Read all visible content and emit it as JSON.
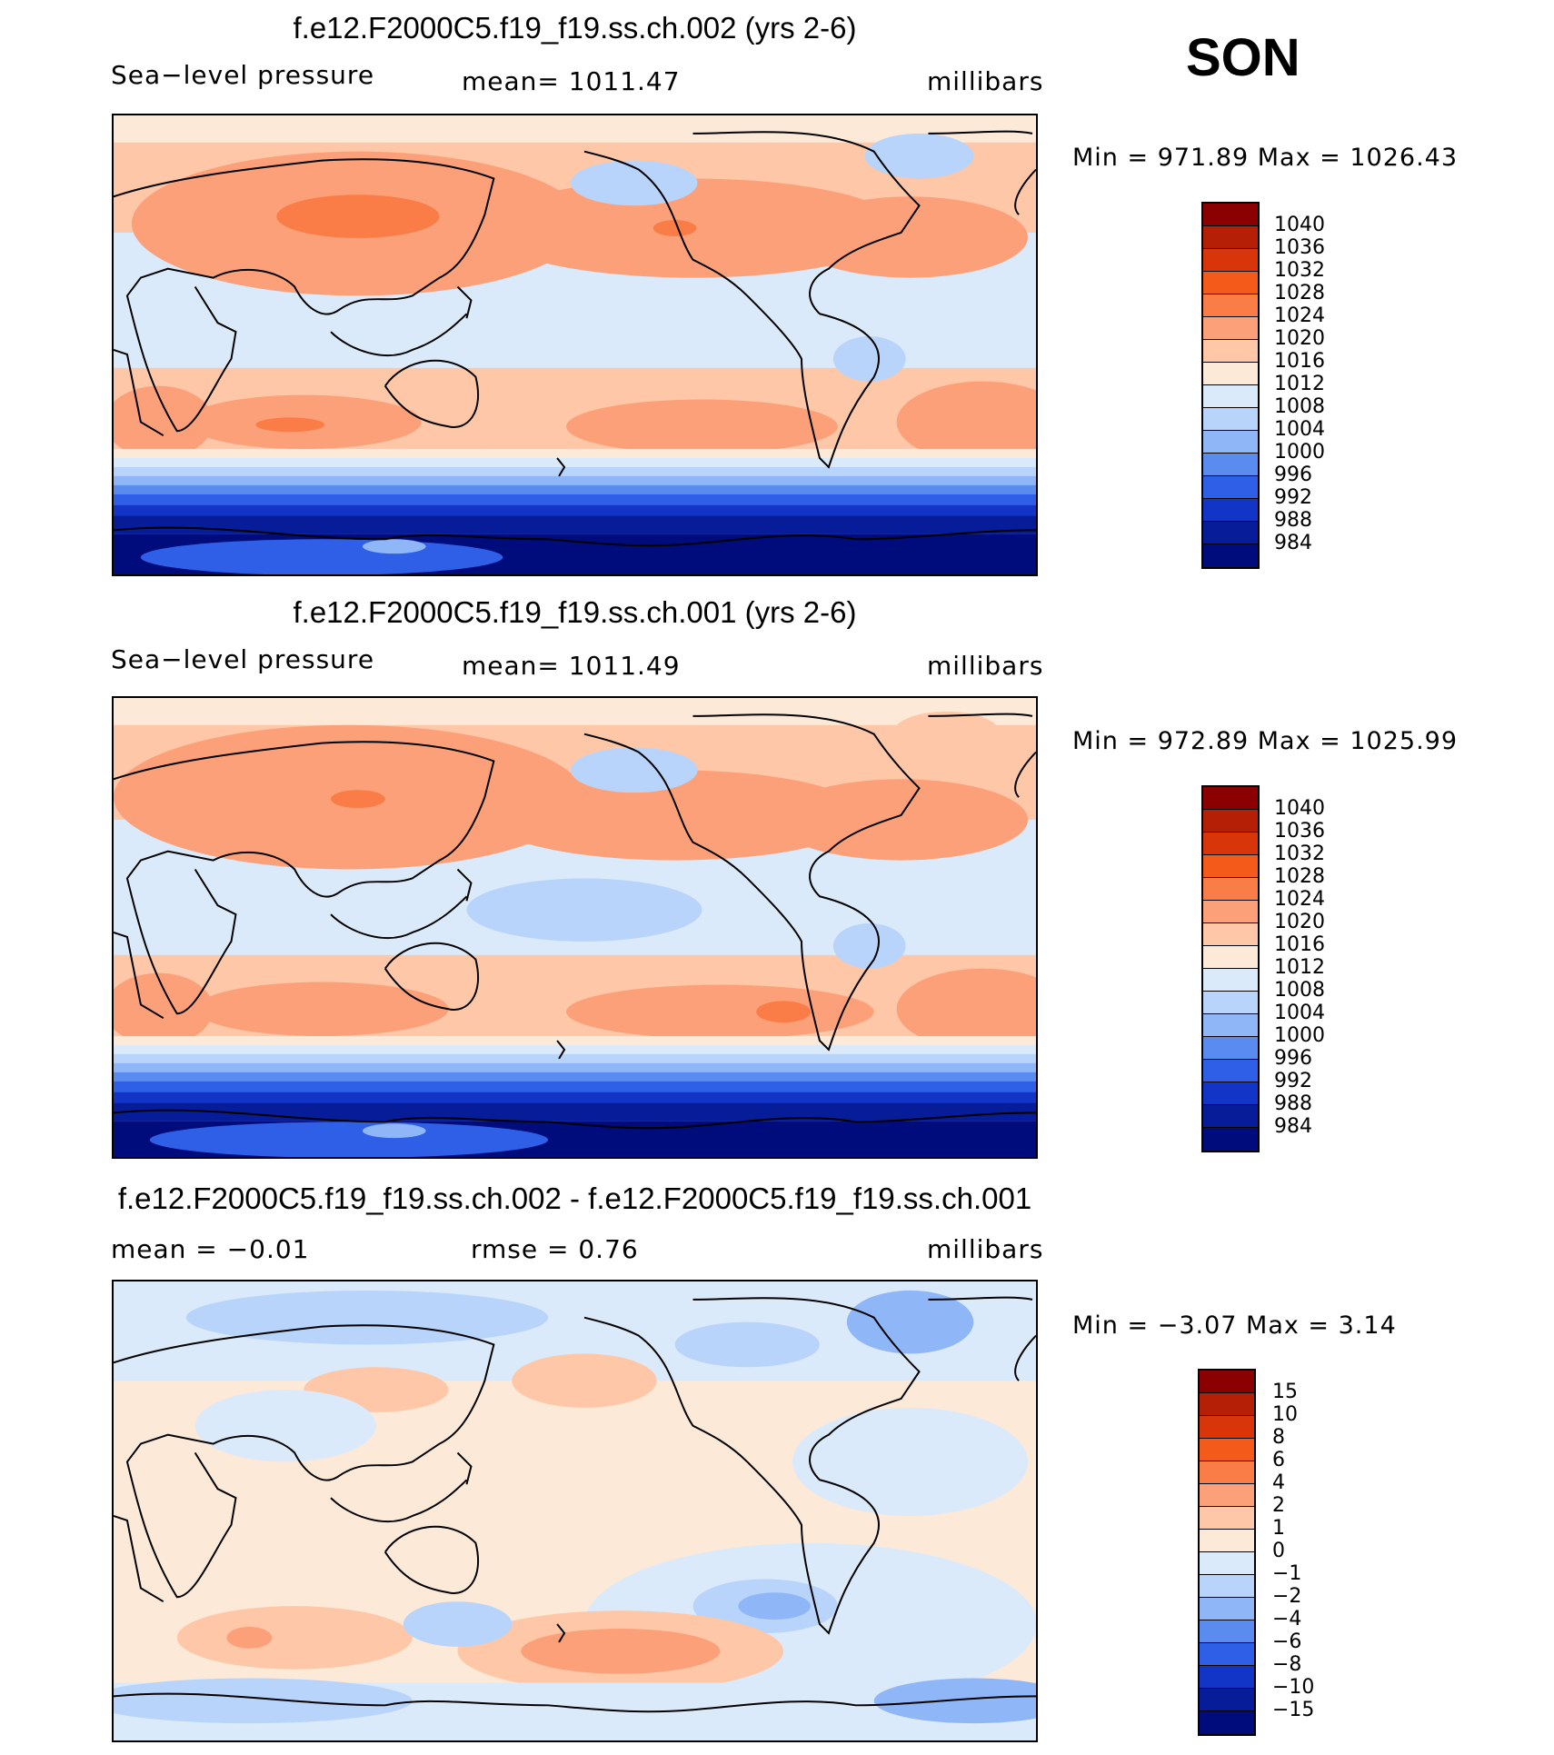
{
  "season": "SON",
  "panels": [
    {
      "title": "f.e12.F2000C5.f19_f19.ss.ch.002 (yrs 2-6)",
      "left_label": "Sea−level pressure",
      "center_label": "mean=  1011.47",
      "units": "millibars",
      "minmax": "Min  =  971.89  Max  =  1026.43"
    },
    {
      "title": "f.e12.F2000C5.f19_f19.ss.ch.001 (yrs 2-6)",
      "left_label": "Sea−level pressure",
      "center_label": "mean=  1011.49",
      "units": "millibars",
      "minmax": "Min  =  972.89  Max  =  1025.99"
    },
    {
      "title": "f.e12.F2000C5.f19_f19.ss.ch.002 - f.e12.F2000C5.f19_f19.ss.ch.001",
      "left_label": "mean  =    −0.01",
      "center_label": "rmse  =      0.76",
      "units": "millibars",
      "minmax": "Min  =    −3.07  Max  =      3.14"
    }
  ],
  "legends": {
    "slp": {
      "labels": [
        "1040",
        "1036",
        "1032",
        "1028",
        "1024",
        "1020",
        "1016",
        "1012",
        "1008",
        "1004",
        "1000",
        "996",
        "992",
        "988",
        "984"
      ],
      "colors": [
        "#8b0000",
        "#b51f05",
        "#d9350a",
        "#f45a1a",
        "#fa7c46",
        "#fca079",
        "#fdc7a8",
        "#fde9d8",
        "#dbeafa",
        "#b8d4fb",
        "#8fb6f6",
        "#5a8cf0",
        "#2e5fe6",
        "#1235c8",
        "#061c99",
        "#000b7c"
      ]
    },
    "diff": {
      "labels": [
        "15",
        "10",
        "8",
        "6",
        "4",
        "2",
        "1",
        "0",
        "−1",
        "−2",
        "−4",
        "−6",
        "−8",
        "−10",
        "−15"
      ],
      "colors": [
        "#8b0000",
        "#b51f05",
        "#d9350a",
        "#f45a1a",
        "#fa7c46",
        "#fca079",
        "#fdc7a8",
        "#fde9d8",
        "#dbeafa",
        "#b8d4fb",
        "#8fb6f6",
        "#5a8cf0",
        "#2e5fe6",
        "#1235c8",
        "#061c99",
        "#000b7c"
      ]
    }
  }
}
